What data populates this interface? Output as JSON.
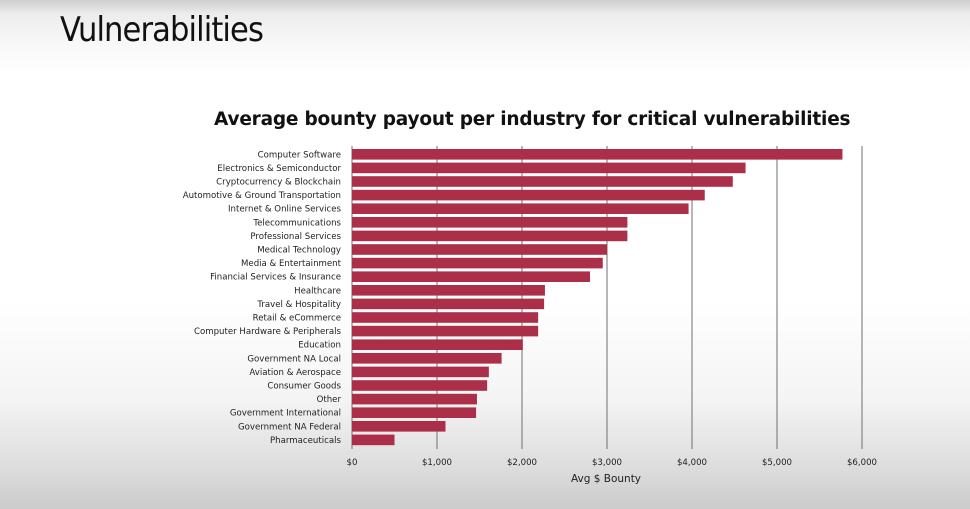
{
  "slide": {
    "title": "Vulnerabilities"
  },
  "colors": {
    "bar": "#ac2f49",
    "grid": "#6f6f6f"
  },
  "chart_data": {
    "type": "bar",
    "orientation": "horizontal",
    "title": "Average bounty payout per industry for critical vulnerabilities",
    "xlabel": "Avg $ Bounty",
    "ylabel": "",
    "xlim": [
      0,
      6000
    ],
    "grid": true,
    "x_ticks": [
      0,
      1000,
      2000,
      3000,
      4000,
      5000,
      6000
    ],
    "x_tick_labels": [
      "$0",
      "$1,000",
      "$2,000",
      "$3,000",
      "$4,000",
      "$5,000",
      "$6,000"
    ],
    "categories": [
      "Computer Software",
      "Electronics & Semiconductor",
      "Cryptocurrency & Blockchain",
      "Automotive & Ground Transportation",
      "Internet & Online Services",
      "Telecommunications",
      "Professional Services",
      "Medical Technology",
      "Media & Entertainment",
      "Financial Services & Insurance",
      "Healthcare",
      "Travel & Hospitality",
      "Retail & eCommerce",
      "Computer Hardware & Peripherals",
      "Education",
      "Government NA Local",
      "Aviation & Aerospace",
      "Consumer Goods",
      "Other",
      "Government International",
      "Government NA Federal",
      "Pharmaceuticals"
    ],
    "values": [
      5770,
      4630,
      4480,
      4150,
      3960,
      3240,
      3240,
      3000,
      2950,
      2800,
      2270,
      2260,
      2190,
      2190,
      2010,
      1760,
      1610,
      1590,
      1470,
      1460,
      1100,
      500
    ]
  }
}
